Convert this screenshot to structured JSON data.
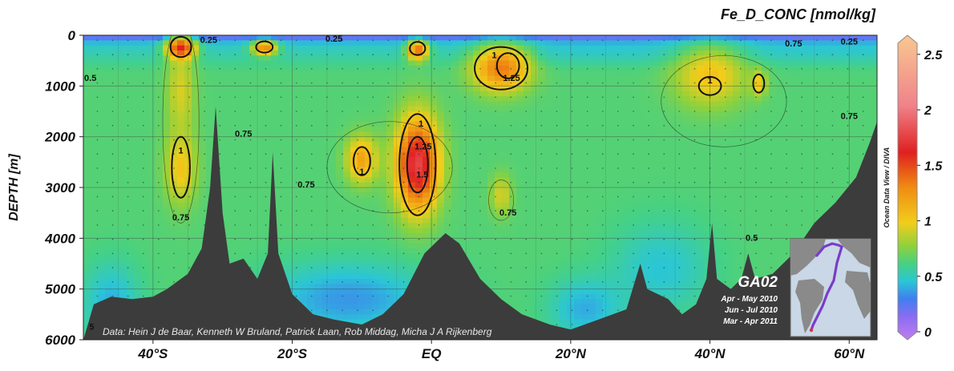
{
  "chart_data": {
    "type": "heatmap",
    "title": "Fe_D_CONC [nmol/kg]",
    "ylabel": "DEPTH [m]",
    "xlabel": "",
    "x_ticks": [
      "40°S",
      "20°S",
      "EQ",
      "20°N",
      "40°N",
      "60°N"
    ],
    "x_tick_values": [
      -40,
      -20,
      0,
      20,
      40,
      60
    ],
    "xlim": [
      -50,
      64
    ],
    "y_ticks": [
      "0",
      "1000",
      "2000",
      "3000",
      "4000",
      "5000",
      "6000"
    ],
    "y_tick_values": [
      0,
      1000,
      2000,
      3000,
      4000,
      5000,
      6000
    ],
    "ylim": [
      0,
      6000
    ],
    "y_inverted": true,
    "grid": true,
    "colorbar": {
      "ticks": [
        "0",
        "0.5",
        "1",
        "1.5",
        "2",
        "2.5"
      ],
      "tick_values": [
        0,
        0.5,
        1,
        1.5,
        2,
        2.5
      ],
      "range": [
        0,
        2.6
      ],
      "side_label": "Ocean Data View / DIVA",
      "stops": [
        {
          "v": 0.0,
          "color": "#c07df0"
        },
        {
          "v": 0.2,
          "color": "#8a6cf2"
        },
        {
          "v": 0.35,
          "color": "#3f7ff0"
        },
        {
          "v": 0.5,
          "color": "#2bc6d6"
        },
        {
          "v": 0.65,
          "color": "#46d183"
        },
        {
          "v": 0.8,
          "color": "#8fd13c"
        },
        {
          "v": 1.0,
          "color": "#f2cd1a"
        },
        {
          "v": 1.3,
          "color": "#f08c12"
        },
        {
          "v": 1.6,
          "color": "#e02020"
        },
        {
          "v": 2.0,
          "color": "#f0828a"
        },
        {
          "v": 2.6,
          "color": "#f8c890"
        }
      ]
    },
    "background_value": 0.68,
    "hotspots": [
      {
        "lat": -36,
        "depth": 2600,
        "value": 1.05,
        "rx": 2.2,
        "rz": 700
      },
      {
        "lat": -36,
        "depth": 1100,
        "value": 0.95,
        "rx": 2.0,
        "rz": 900
      },
      {
        "lat": -36,
        "depth": 250,
        "value": 1.6,
        "rx": 2.0,
        "rz": 200
      },
      {
        "lat": -24,
        "depth": 250,
        "value": 1.3,
        "rx": 1.8,
        "rz": 150
      },
      {
        "lat": -10,
        "depth": 2450,
        "value": 1.2,
        "rx": 2.2,
        "rz": 450
      },
      {
        "lat": -2,
        "depth": 2550,
        "value": 1.75,
        "rx": 3.0,
        "rz": 900
      },
      {
        "lat": -2,
        "depth": 300,
        "value": 1.4,
        "rx": 1.5,
        "rz": 200
      },
      {
        "lat": 10,
        "depth": 650,
        "value": 1.35,
        "rx": 4.0,
        "rz": 450
      },
      {
        "lat": 10,
        "depth": 3150,
        "value": 0.95,
        "rx": 1.5,
        "rz": 400
      },
      {
        "lat": 40,
        "depth": 800,
        "value": 1.05,
        "rx": 5.0,
        "rz": 600
      },
      {
        "lat": 47,
        "depth": 950,
        "value": 1.05,
        "rx": 1.0,
        "rz": 250
      }
    ],
    "low_regions": [
      {
        "lat": -12,
        "depth": 5200,
        "value": 0.4,
        "rx": 12.0,
        "rz": 700
      },
      {
        "lat": -46,
        "depth": 5300,
        "value": 0.45,
        "rx": 4.0,
        "rz": 800
      },
      {
        "lat": 33,
        "depth": 4600,
        "value": 0.5,
        "rx": 7.0,
        "rz": 900
      },
      {
        "lat": 22,
        "depth": 5400,
        "value": 0.45,
        "rx": 5.0,
        "rz": 600
      }
    ],
    "bathymetry": [
      {
        "lat": -50.0,
        "depth": 6000
      },
      {
        "lat": -48.5,
        "depth": 5300
      },
      {
        "lat": -46,
        "depth": 5150
      },
      {
        "lat": -43,
        "depth": 5200
      },
      {
        "lat": -40,
        "depth": 5150
      },
      {
        "lat": -38,
        "depth": 5000
      },
      {
        "lat": -35,
        "depth": 4700
      },
      {
        "lat": -33,
        "depth": 4200
      },
      {
        "lat": -31.8,
        "depth": 3000
      },
      {
        "lat": -31,
        "depth": 1400
      },
      {
        "lat": -30,
        "depth": 3500
      },
      {
        "lat": -29,
        "depth": 4500
      },
      {
        "lat": -27,
        "depth": 4400
      },
      {
        "lat": -25,
        "depth": 4800
      },
      {
        "lat": -23.5,
        "depth": 4300
      },
      {
        "lat": -22.8,
        "depth": 2300
      },
      {
        "lat": -22,
        "depth": 4300
      },
      {
        "lat": -20,
        "depth": 5100
      },
      {
        "lat": -17,
        "depth": 5500
      },
      {
        "lat": -14,
        "depth": 5600
      },
      {
        "lat": -10,
        "depth": 5700
      },
      {
        "lat": -7,
        "depth": 5500
      },
      {
        "lat": -4,
        "depth": 5100
      },
      {
        "lat": -1,
        "depth": 4300
      },
      {
        "lat": 2,
        "depth": 3900
      },
      {
        "lat": 4,
        "depth": 4100
      },
      {
        "lat": 7,
        "depth": 4800
      },
      {
        "lat": 10,
        "depth": 5200
      },
      {
        "lat": 13,
        "depth": 5500
      },
      {
        "lat": 17,
        "depth": 5700
      },
      {
        "lat": 20,
        "depth": 5800
      },
      {
        "lat": 24,
        "depth": 5600
      },
      {
        "lat": 28,
        "depth": 5400
      },
      {
        "lat": 30,
        "depth": 4500
      },
      {
        "lat": 31,
        "depth": 5000
      },
      {
        "lat": 34,
        "depth": 5200
      },
      {
        "lat": 36,
        "depth": 5500
      },
      {
        "lat": 38,
        "depth": 5300
      },
      {
        "lat": 39.5,
        "depth": 4800
      },
      {
        "lat": 40.3,
        "depth": 3700
      },
      {
        "lat": 41,
        "depth": 4800
      },
      {
        "lat": 43,
        "depth": 5000
      },
      {
        "lat": 44.5,
        "depth": 4800
      },
      {
        "lat": 45.5,
        "depth": 4300
      },
      {
        "lat": 46.5,
        "depth": 4800
      },
      {
        "lat": 49,
        "depth": 4700
      },
      {
        "lat": 52,
        "depth": 4300
      },
      {
        "lat": 55,
        "depth": 3700
      },
      {
        "lat": 58,
        "depth": 3300
      },
      {
        "lat": 61,
        "depth": 2800
      },
      {
        "lat": 63,
        "depth": 2100
      },
      {
        "lat": 64,
        "depth": 1700
      }
    ],
    "contour_labels": [
      {
        "text": "0.25",
        "lat": -32,
        "depth": 150
      },
      {
        "text": "0.25",
        "lat": -14,
        "depth": 130
      },
      {
        "text": "0.25",
        "lat": 60,
        "depth": 180
      },
      {
        "text": "0.75",
        "lat": 52,
        "depth": 220
      },
      {
        "text": "0.5",
        "lat": -49,
        "depth": 900
      },
      {
        "text": "1",
        "lat": 40,
        "depth": 950
      },
      {
        "text": "0.75",
        "lat": 60,
        "depth": 1650
      },
      {
        "text": "0.75",
        "lat": -27,
        "depth": 2000
      },
      {
        "text": "1",
        "lat": -36,
        "depth": 2330
      },
      {
        "text": "0.75",
        "lat": -18,
        "depth": 3000
      },
      {
        "text": "1",
        "lat": -10,
        "depth": 2750
      },
      {
        "text": "1",
        "lat": -1.5,
        "depth": 1800
      },
      {
        "text": "1.25",
        "lat": -1.2,
        "depth": 2250
      },
      {
        "text": "1.5",
        "lat": -1.3,
        "depth": 2800
      },
      {
        "text": "0.75",
        "lat": -36,
        "depth": 3650
      },
      {
        "text": "0.75",
        "lat": 11,
        "depth": 3550
      },
      {
        "text": "1",
        "lat": 9,
        "depth": 450
      },
      {
        "text": "1.25",
        "lat": 11.5,
        "depth": 900
      },
      {
        "text": "0.5",
        "lat": 46,
        "depth": 4050
      },
      {
        "text": "5",
        "lat": -48.8,
        "depth": 5800
      }
    ],
    "annotations": {
      "cruise": "GA02",
      "periods": [
        "Apr - May 2010",
        "Jun - Jul 2010",
        "Mar - Apr 2011"
      ],
      "credit": "Data: Hein J de Baar, Kenneth W Bruland, Patrick Laan, Rob Middag, Micha J A Rijkenberg"
    }
  }
}
